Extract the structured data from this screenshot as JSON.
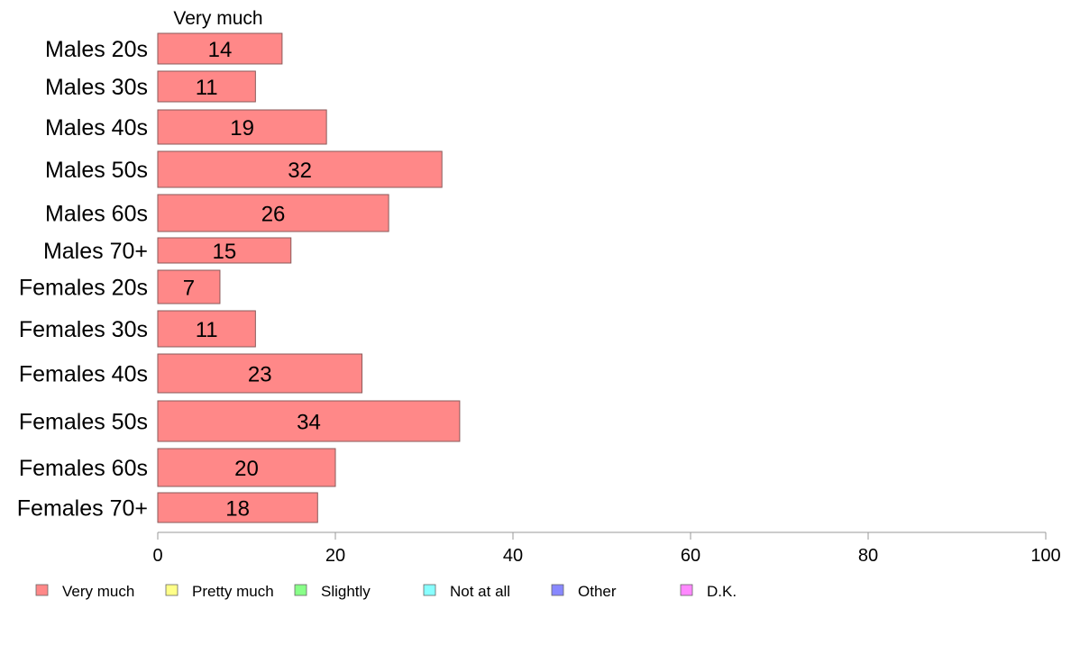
{
  "chart_data": {
    "type": "bar",
    "orientation": "horizontal",
    "stacked": true,
    "categories": [
      "Males 20s",
      "Males 30s",
      "Males 40s",
      "Males 50s",
      "Males 60s",
      "Males 70+",
      "Females 20s",
      "Females 30s",
      "Females 40s",
      "Females 50s",
      "Females 60s",
      "Females 70+"
    ],
    "series": [
      {
        "name": "Very much",
        "color": "#ff8888",
        "values": [
          14,
          11,
          19,
          32,
          26,
          15,
          7,
          11,
          23,
          34,
          20,
          18
        ]
      }
    ],
    "shown_series_label": "Very much",
    "legend": [
      {
        "name": "Very much",
        "color": "#ff8888"
      },
      {
        "name": "Pretty much",
        "color": "#ffff88"
      },
      {
        "name": "Slightly",
        "color": "#88ff88"
      },
      {
        "name": "Not at all",
        "color": "#88ffff"
      },
      {
        "name": "Other",
        "color": "#8888ff"
      },
      {
        "name": "D.K.",
        "color": "#ff88ff"
      }
    ],
    "legend_position": "bottom",
    "xlim": [
      0,
      100
    ],
    "xticks": [
      0,
      20,
      40,
      60,
      80,
      100
    ],
    "grid": false,
    "title": "",
    "xlabel": "",
    "ylabel": ""
  }
}
